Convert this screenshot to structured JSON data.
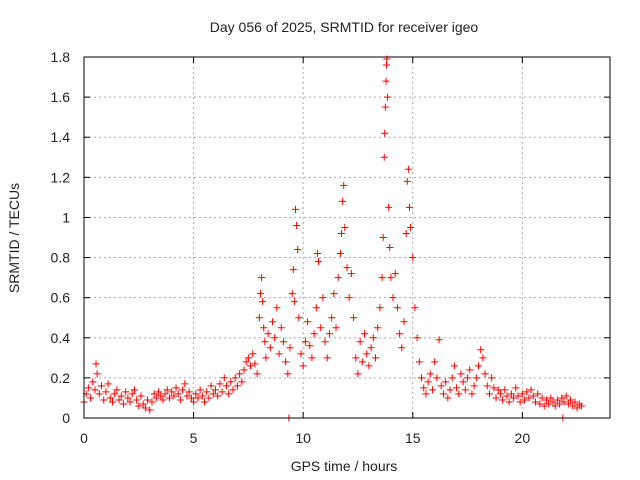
{
  "chart_data": {
    "type": "scatter",
    "title": "Day 056 of 2025, SRMTID for receiver igeo",
    "xlabel": "GPS time / hours",
    "ylabel": "SRMTID / TECUs",
    "xlim": [
      0,
      24
    ],
    "ylim": [
      0,
      1.8
    ],
    "xticks": [
      "0",
      "5",
      "10",
      "15",
      "20"
    ],
    "xtick_values": [
      0,
      5,
      10,
      15,
      20
    ],
    "yticks": [
      "0",
      "0.2",
      "0.4",
      "0.6",
      "0.8",
      "1",
      "1.2",
      "1.4",
      "1.6",
      "1.8"
    ],
    "ytick_values": [
      0,
      0.2,
      0.4,
      0.6,
      0.8,
      1.0,
      1.2,
      1.4,
      1.6,
      1.8
    ],
    "grid": true,
    "marker": "+",
    "series": [
      {
        "name": "SRMTID",
        "color": "#ff0000",
        "points": [
          [
            0.0,
            0.08
          ],
          [
            0.1,
            0.12
          ],
          [
            0.2,
            0.15
          ],
          [
            0.3,
            0.1
          ],
          [
            0.4,
            0.18
          ],
          [
            0.5,
            0.14
          ],
          [
            0.55,
            0.27
          ],
          [
            0.6,
            0.22
          ],
          [
            0.7,
            0.12
          ],
          [
            0.8,
            0.16
          ],
          [
            0.9,
            0.09
          ],
          [
            1.0,
            0.13
          ],
          [
            1.1,
            0.17
          ],
          [
            1.2,
            0.1
          ],
          [
            1.3,
            0.08
          ],
          [
            1.4,
            0.12
          ],
          [
            1.5,
            0.14
          ],
          [
            1.6,
            0.09
          ],
          [
            1.7,
            0.11
          ],
          [
            1.8,
            0.07
          ],
          [
            1.9,
            0.13
          ],
          [
            2.0,
            0.1
          ],
          [
            2.1,
            0.08
          ],
          [
            2.2,
            0.12
          ],
          [
            2.3,
            0.14
          ],
          [
            2.4,
            0.09
          ],
          [
            2.5,
            0.06
          ],
          [
            2.6,
            0.11
          ],
          [
            2.7,
            0.07
          ],
          [
            2.8,
            0.05
          ],
          [
            2.9,
            0.09
          ],
          [
            3.0,
            0.04
          ],
          [
            3.1,
            0.08
          ],
          [
            3.2,
            0.12
          ],
          [
            3.3,
            0.1
          ],
          [
            3.4,
            0.13
          ],
          [
            3.5,
            0.11
          ],
          [
            3.6,
            0.09
          ],
          [
            3.7,
            0.12
          ],
          [
            3.8,
            0.14
          ],
          [
            3.9,
            0.1
          ],
          [
            4.0,
            0.13
          ],
          [
            4.1,
            0.11
          ],
          [
            4.2,
            0.15
          ],
          [
            4.3,
            0.12
          ],
          [
            4.4,
            0.09
          ],
          [
            4.5,
            0.14
          ],
          [
            4.6,
            0.17
          ],
          [
            4.7,
            0.11
          ],
          [
            4.8,
            0.13
          ],
          [
            4.9,
            0.1
          ],
          [
            5.0,
            0.08
          ],
          [
            5.1,
            0.12
          ],
          [
            5.2,
            0.1
          ],
          [
            5.3,
            0.14
          ],
          [
            5.4,
            0.11
          ],
          [
            5.5,
            0.08
          ],
          [
            5.6,
            0.13
          ],
          [
            5.7,
            0.1
          ],
          [
            5.8,
            0.16
          ],
          [
            5.9,
            0.12
          ],
          [
            6.0,
            0.14
          ],
          [
            6.1,
            0.11
          ],
          [
            6.2,
            0.17
          ],
          [
            6.3,
            0.13
          ],
          [
            6.4,
            0.2
          ],
          [
            6.5,
            0.16
          ],
          [
            6.6,
            0.12
          ],
          [
            6.7,
            0.18
          ],
          [
            6.8,
            0.14
          ],
          [
            6.9,
            0.2
          ],
          [
            7.0,
            0.16
          ],
          [
            7.1,
            0.22
          ],
          [
            7.2,
            0.18
          ],
          [
            7.3,
            0.24
          ],
          [
            7.4,
            0.28
          ],
          [
            7.5,
            0.3
          ],
          [
            7.6,
            0.26
          ],
          [
            7.7,
            0.32
          ],
          [
            7.8,
            0.27
          ],
          [
            7.9,
            0.22
          ],
          [
            8.0,
            0.5
          ],
          [
            8.05,
            0.62
          ],
          [
            8.1,
            0.7
          ],
          [
            8.15,
            0.58
          ],
          [
            8.2,
            0.45
          ],
          [
            8.25,
            0.38
          ],
          [
            8.3,
            0.3
          ],
          [
            8.4,
            0.42
          ],
          [
            8.5,
            0.35
          ],
          [
            8.6,
            0.48
          ],
          [
            8.7,
            0.4
          ],
          [
            8.8,
            0.55
          ],
          [
            8.9,
            0.32
          ],
          [
            9.0,
            0.45
          ],
          [
            9.1,
            0.38
          ],
          [
            9.2,
            0.28
          ],
          [
            9.3,
            0.22
          ],
          [
            9.35,
            0.0
          ],
          [
            9.4,
            0.35
          ],
          [
            9.5,
            0.62
          ],
          [
            9.55,
            0.74
          ],
          [
            9.6,
            0.58
          ],
          [
            9.65,
            1.04
          ],
          [
            9.7,
            0.96
          ],
          [
            9.75,
            0.84
          ],
          [
            9.8,
            0.5
          ],
          [
            9.9,
            0.32
          ],
          [
            10.0,
            0.26
          ],
          [
            10.1,
            0.38
          ],
          [
            10.2,
            0.48
          ],
          [
            10.3,
            0.36
          ],
          [
            10.4,
            0.3
          ],
          [
            10.5,
            0.42
          ],
          [
            10.6,
            0.55
          ],
          [
            10.65,
            0.82
          ],
          [
            10.7,
            0.78
          ],
          [
            10.8,
            0.45
          ],
          [
            10.9,
            0.6
          ],
          [
            11.0,
            0.38
          ],
          [
            11.1,
            0.3
          ],
          [
            11.2,
            0.42
          ],
          [
            11.3,
            0.5
          ],
          [
            11.4,
            0.62
          ],
          [
            11.5,
            0.45
          ],
          [
            11.6,
            0.7
          ],
          [
            11.7,
            0.82
          ],
          [
            11.75,
            0.92
          ],
          [
            11.8,
            1.08
          ],
          [
            11.85,
            1.16
          ],
          [
            11.9,
            0.95
          ],
          [
            12.0,
            0.75
          ],
          [
            12.1,
            0.6
          ],
          [
            12.2,
            0.72
          ],
          [
            12.3,
            0.5
          ],
          [
            12.4,
            0.3
          ],
          [
            12.5,
            0.22
          ],
          [
            12.6,
            0.38
          ],
          [
            12.7,
            0.28
          ],
          [
            12.8,
            0.42
          ],
          [
            12.9,
            0.32
          ],
          [
            13.0,
            0.26
          ],
          [
            13.1,
            0.35
          ],
          [
            13.2,
            0.4
          ],
          [
            13.3,
            0.3
          ],
          [
            13.4,
            0.45
          ],
          [
            13.5,
            0.55
          ],
          [
            13.6,
            0.7
          ],
          [
            13.65,
            0.9
          ],
          [
            13.7,
            1.3
          ],
          [
            13.72,
            1.42
          ],
          [
            13.75,
            1.55
          ],
          [
            13.78,
            1.68
          ],
          [
            13.8,
            1.76
          ],
          [
            13.82,
            1.79
          ],
          [
            13.85,
            1.6
          ],
          [
            13.9,
            1.05
          ],
          [
            13.95,
            0.85
          ],
          [
            14.0,
            0.7
          ],
          [
            14.1,
            0.6
          ],
          [
            14.2,
            0.72
          ],
          [
            14.3,
            0.55
          ],
          [
            14.4,
            0.42
          ],
          [
            14.5,
            0.35
          ],
          [
            14.6,
            0.48
          ],
          [
            14.7,
            0.92
          ],
          [
            14.75,
            1.18
          ],
          [
            14.8,
            1.24
          ],
          [
            14.85,
            1.05
          ],
          [
            14.9,
            0.95
          ],
          [
            15.0,
            0.8
          ],
          [
            15.1,
            0.55
          ],
          [
            15.2,
            0.4
          ],
          [
            15.3,
            0.28
          ],
          [
            15.4,
            0.2
          ],
          [
            15.5,
            0.15
          ],
          [
            15.6,
            0.12
          ],
          [
            15.7,
            0.18
          ],
          [
            15.8,
            0.22
          ],
          [
            15.9,
            0.14
          ],
          [
            16.0,
            0.28
          ],
          [
            16.1,
            0.2
          ],
          [
            16.2,
            0.39
          ],
          [
            16.3,
            0.16
          ],
          [
            16.4,
            0.12
          ],
          [
            16.5,
            0.18
          ],
          [
            16.6,
            0.1
          ],
          [
            16.7,
            0.14
          ],
          [
            16.8,
            0.2
          ],
          [
            16.9,
            0.26
          ],
          [
            17.0,
            0.15
          ],
          [
            17.1,
            0.12
          ],
          [
            17.2,
            0.22
          ],
          [
            17.3,
            0.18
          ],
          [
            17.4,
            0.14
          ],
          [
            17.5,
            0.2
          ],
          [
            17.6,
            0.24
          ],
          [
            17.7,
            0.12
          ],
          [
            17.8,
            0.16
          ],
          [
            17.9,
            0.2
          ],
          [
            18.0,
            0.26
          ],
          [
            18.1,
            0.34
          ],
          [
            18.2,
            0.3
          ],
          [
            18.3,
            0.22
          ],
          [
            18.4,
            0.16
          ],
          [
            18.5,
            0.12
          ],
          [
            18.6,
            0.2
          ],
          [
            18.7,
            0.15
          ],
          [
            18.8,
            0.1
          ],
          [
            18.9,
            0.14
          ],
          [
            19.0,
            0.12
          ],
          [
            19.1,
            0.09
          ],
          [
            19.2,
            0.14
          ],
          [
            19.3,
            0.11
          ],
          [
            19.4,
            0.08
          ],
          [
            19.5,
            0.12
          ],
          [
            19.6,
            0.1
          ],
          [
            19.7,
            0.15
          ],
          [
            19.8,
            0.11
          ],
          [
            19.9,
            0.08
          ],
          [
            20.0,
            0.12
          ],
          [
            20.1,
            0.09
          ],
          [
            20.2,
            0.13
          ],
          [
            20.3,
            0.1
          ],
          [
            20.4,
            0.14
          ],
          [
            20.5,
            0.11
          ],
          [
            20.6,
            0.08
          ],
          [
            20.7,
            0.12
          ],
          [
            20.8,
            0.07
          ],
          [
            20.9,
            0.1
          ],
          [
            21.0,
            0.06
          ],
          [
            21.1,
            0.09
          ],
          [
            21.2,
            0.07
          ],
          [
            21.3,
            0.1
          ],
          [
            21.4,
            0.08
          ],
          [
            21.5,
            0.06
          ],
          [
            21.6,
            0.09
          ],
          [
            21.7,
            0.07
          ],
          [
            21.8,
            0.1
          ],
          [
            21.85,
            0.0
          ],
          [
            21.9,
            0.08
          ],
          [
            22.0,
            0.11
          ],
          [
            22.1,
            0.07
          ],
          [
            22.2,
            0.09
          ],
          [
            22.3,
            0.06
          ],
          [
            22.4,
            0.08
          ],
          [
            22.5,
            0.05
          ],
          [
            22.6,
            0.07
          ],
          [
            22.7,
            0.06
          ]
        ]
      }
    ]
  }
}
